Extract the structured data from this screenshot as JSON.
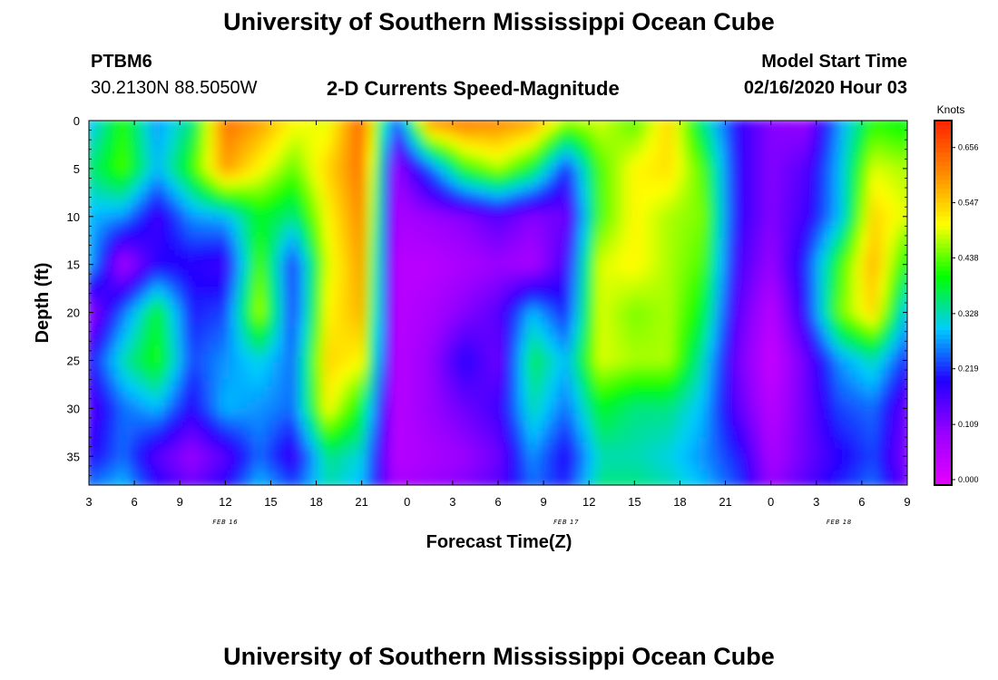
{
  "header": {
    "title": "University of Southern Mississippi Ocean Cube",
    "station_id": "PTBM6",
    "station_location": "30.2130N 88.5050W",
    "chart_title": "2-D Currents Speed-Magnitude",
    "model_start_label": "Model Start Time",
    "model_start_value": "02/16/2020 Hour 03"
  },
  "footer": {
    "title": "University of Southern Mississippi Ocean Cube"
  },
  "chart_data": {
    "type": "heatmap",
    "title": "2-D Currents Speed-Magnitude",
    "xlabel": "Forecast Time(Z)",
    "ylabel": "Depth (ft)",
    "x_hours_from_start": [
      0,
      3,
      6,
      9,
      12,
      15,
      18,
      21,
      24,
      27,
      30,
      33,
      36,
      39,
      42,
      45,
      48,
      51,
      54
    ],
    "x_tick_labels": [
      "3",
      "6",
      "9",
      "12",
      "15",
      "18",
      "21",
      "0",
      "3",
      "6",
      "9",
      "12",
      "15",
      "18",
      "21",
      "0",
      "3",
      "6",
      "9"
    ],
    "date_labels": [
      {
        "text": "FEB 16",
        "hour": 9
      },
      {
        "text": "FEB 17",
        "hour": 31.5
      },
      {
        "text": "FEB 18",
        "hour": 49.5
      }
    ],
    "y_ticks": [
      0,
      5,
      10,
      15,
      20,
      25,
      30,
      35
    ],
    "ylim": [
      38,
      0
    ],
    "colorbar": {
      "label": "Knots",
      "ticks": [
        "0.000",
        "0.109",
        "0.219",
        "0.328",
        "0.438",
        "0.547",
        "0.656"
      ],
      "tick_values": [
        0.0,
        0.109,
        0.219,
        0.328,
        0.438,
        0.547,
        0.656
      ],
      "range": [
        0.0,
        0.72
      ],
      "colors": [
        "#e600ff",
        "#9900ff",
        "#2200ff",
        "#00ccff",
        "#00ff00",
        "#ffff00",
        "#ff8800",
        "#ff2200"
      ]
    },
    "depths": [
      0,
      5,
      10,
      15,
      20,
      25,
      30,
      35,
      38
    ],
    "values": [
      [
        0.3,
        0.42,
        0.28,
        0.36,
        0.64,
        0.6,
        0.52,
        0.5,
        0.66,
        0.22,
        0.62,
        0.64,
        0.62,
        0.6,
        0.48,
        0.5,
        0.44,
        0.55,
        0.36,
        0.2,
        0.12,
        0.1,
        0.28,
        0.42,
        0.4
      ],
      [
        0.36,
        0.44,
        0.3,
        0.42,
        0.6,
        0.52,
        0.45,
        0.55,
        0.64,
        0.1,
        0.25,
        0.42,
        0.48,
        0.4,
        0.22,
        0.44,
        0.52,
        0.54,
        0.44,
        0.2,
        0.12,
        0.16,
        0.3,
        0.5,
        0.48
      ],
      [
        0.3,
        0.28,
        0.18,
        0.28,
        0.3,
        0.4,
        0.36,
        0.52,
        0.62,
        0.08,
        0.1,
        0.12,
        0.16,
        0.12,
        0.14,
        0.44,
        0.52,
        0.48,
        0.46,
        0.2,
        0.12,
        0.18,
        0.3,
        0.55,
        0.5
      ],
      [
        0.3,
        0.08,
        0.2,
        0.2,
        0.18,
        0.44,
        0.22,
        0.5,
        0.6,
        0.06,
        0.06,
        0.08,
        0.1,
        0.08,
        0.18,
        0.5,
        0.52,
        0.48,
        0.44,
        0.18,
        0.1,
        0.22,
        0.42,
        0.58,
        0.4
      ],
      [
        0.1,
        0.26,
        0.4,
        0.22,
        0.24,
        0.48,
        0.22,
        0.52,
        0.58,
        0.06,
        0.08,
        0.12,
        0.16,
        0.3,
        0.22,
        0.5,
        0.46,
        0.48,
        0.4,
        0.16,
        0.06,
        0.2,
        0.45,
        0.55,
        0.3
      ],
      [
        0.2,
        0.34,
        0.42,
        0.24,
        0.28,
        0.32,
        0.26,
        0.55,
        0.52,
        0.06,
        0.1,
        0.2,
        0.14,
        0.38,
        0.3,
        0.5,
        0.48,
        0.48,
        0.34,
        0.14,
        0.04,
        0.14,
        0.28,
        0.34,
        0.22
      ],
      [
        0.16,
        0.26,
        0.3,
        0.2,
        0.3,
        0.28,
        0.26,
        0.52,
        0.4,
        0.06,
        0.1,
        0.14,
        0.18,
        0.34,
        0.26,
        0.4,
        0.36,
        0.36,
        0.3,
        0.16,
        0.06,
        0.14,
        0.24,
        0.26,
        0.14
      ],
      [
        0.2,
        0.26,
        0.16,
        0.1,
        0.16,
        0.26,
        0.18,
        0.36,
        0.32,
        0.06,
        0.08,
        0.1,
        0.14,
        0.28,
        0.2,
        0.34,
        0.34,
        0.32,
        0.28,
        0.22,
        0.08,
        0.14,
        0.2,
        0.24,
        0.12
      ],
      [
        0.26,
        0.3,
        0.2,
        0.14,
        0.2,
        0.3,
        0.24,
        0.34,
        0.3,
        0.08,
        0.1,
        0.12,
        0.16,
        0.26,
        0.22,
        0.36,
        0.36,
        0.34,
        0.3,
        0.24,
        0.1,
        0.16,
        0.22,
        0.26,
        0.14
      ]
    ]
  }
}
